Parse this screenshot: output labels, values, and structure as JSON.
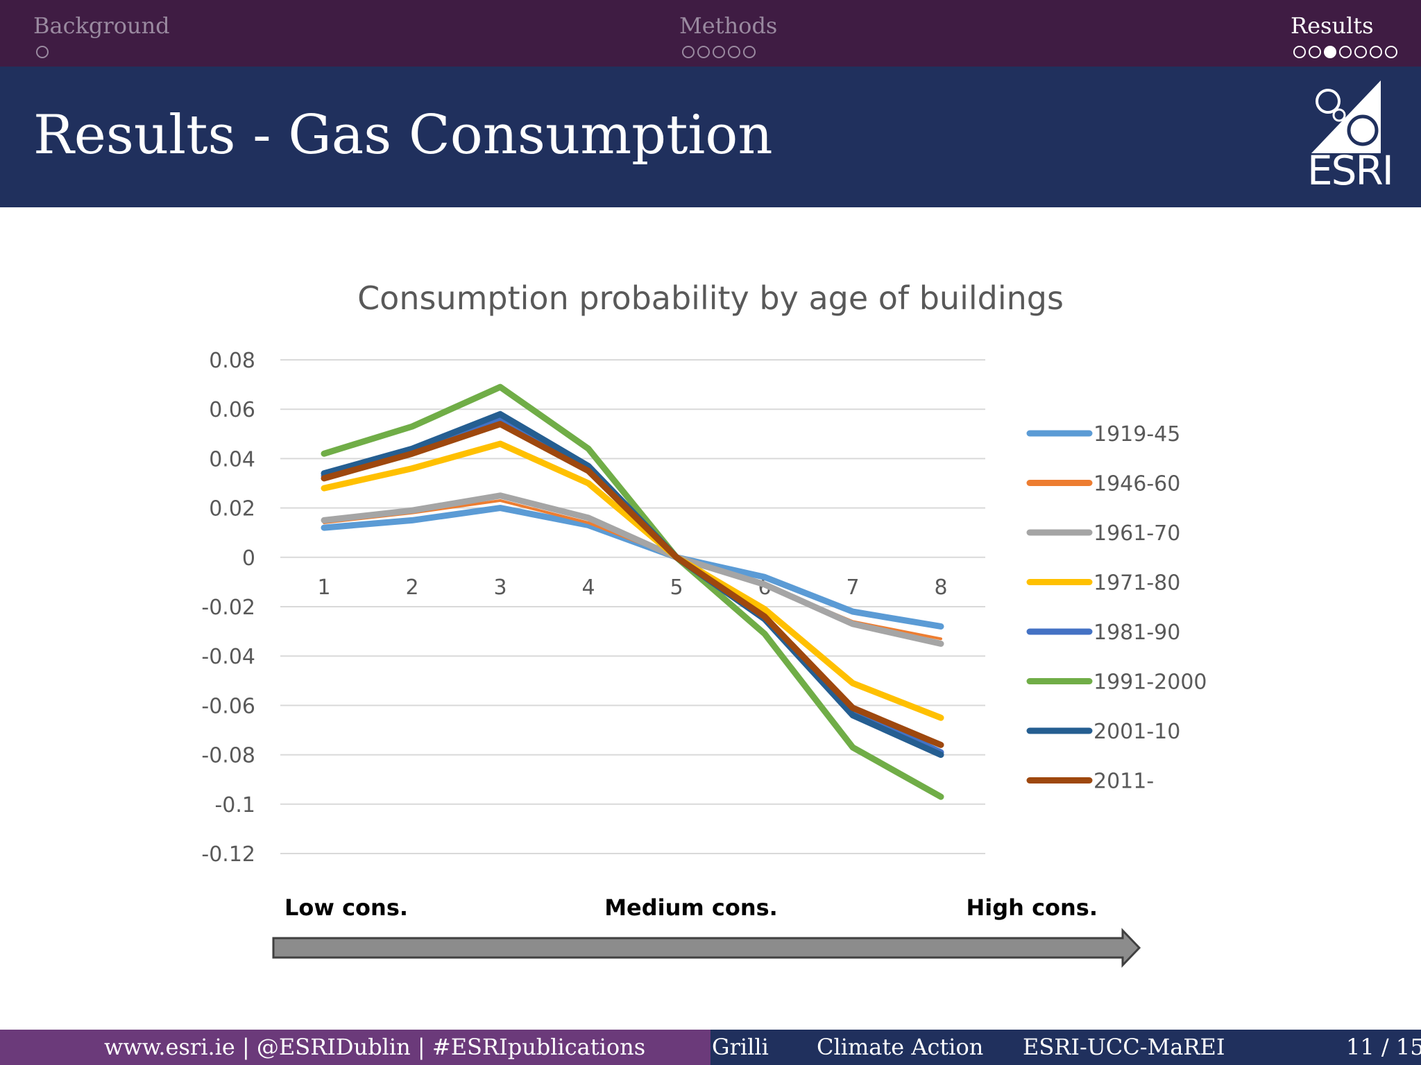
{
  "nav": {
    "sections": [
      {
        "label": "Background",
        "dots": 1,
        "filled": -1,
        "active": false
      },
      {
        "label": "Methods",
        "dots": 5,
        "filled": -1,
        "active": false
      },
      {
        "label": "Results",
        "dots": 7,
        "filled": 2,
        "active": true
      }
    ]
  },
  "header": {
    "title": "Results - Gas Consumption"
  },
  "logo": {
    "text": "ESRI"
  },
  "chart_data": {
    "type": "line",
    "title": "Consumption probability by age of buildings",
    "xlabel": "",
    "ylabel": "",
    "categories": [
      "1",
      "2",
      "3",
      "4",
      "5",
      "6",
      "7",
      "8"
    ],
    "ylim": [
      -0.12,
      0.08
    ],
    "yticks": [
      "0.08",
      "0.06",
      "0.04",
      "0.02",
      "0",
      "-0.02",
      "-0.04",
      "-0.06",
      "-0.08",
      "-0.1",
      "-0.12"
    ],
    "grid": true,
    "legend_position": "right",
    "series": [
      {
        "name": "1919-45",
        "color": "#5b9bd5",
        "values": [
          0.012,
          0.015,
          0.02,
          0.013,
          0.0,
          -0.008,
          -0.022,
          -0.028
        ]
      },
      {
        "name": "1946-60",
        "color": "#ed7d31",
        "values": [
          0.014,
          0.018,
          0.023,
          0.014,
          0.0,
          -0.011,
          -0.026,
          -0.033
        ]
      },
      {
        "name": "1961-70",
        "color": "#a5a5a5",
        "values": [
          0.015,
          0.019,
          0.025,
          0.016,
          0.0,
          -0.011,
          -0.027,
          -0.035
        ]
      },
      {
        "name": "1971-80",
        "color": "#ffc000",
        "values": [
          0.028,
          0.036,
          0.046,
          0.03,
          0.0,
          -0.021,
          -0.051,
          -0.065
        ]
      },
      {
        "name": "1981-90",
        "color": "#4472c4",
        "values": [
          0.033,
          0.043,
          0.056,
          0.036,
          0.0,
          -0.025,
          -0.062,
          -0.079
        ]
      },
      {
        "name": "1991-2000",
        "color": "#70ad47",
        "values": [
          0.042,
          0.053,
          0.069,
          0.044,
          0.0,
          -0.031,
          -0.077,
          -0.097
        ]
      },
      {
        "name": "2001-10",
        "color": "#255e91",
        "values": [
          0.034,
          0.044,
          0.058,
          0.037,
          0.0,
          -0.025,
          -0.064,
          -0.08
        ]
      },
      {
        "name": "2011-",
        "color": "#9e480e",
        "values": [
          0.032,
          0.042,
          0.054,
          0.035,
          0.0,
          -0.024,
          -0.061,
          -0.076
        ]
      }
    ],
    "scale_labels": [
      "Low cons.",
      "Medium cons.",
      "High cons."
    ]
  },
  "footer": {
    "site": "www.esri.ie | @ESRIDublin | #ESRIpublications",
    "author": "Grilli",
    "topic": "Climate Action",
    "org": "ESRI-UCC-MaREI",
    "page": "11 / 15"
  }
}
